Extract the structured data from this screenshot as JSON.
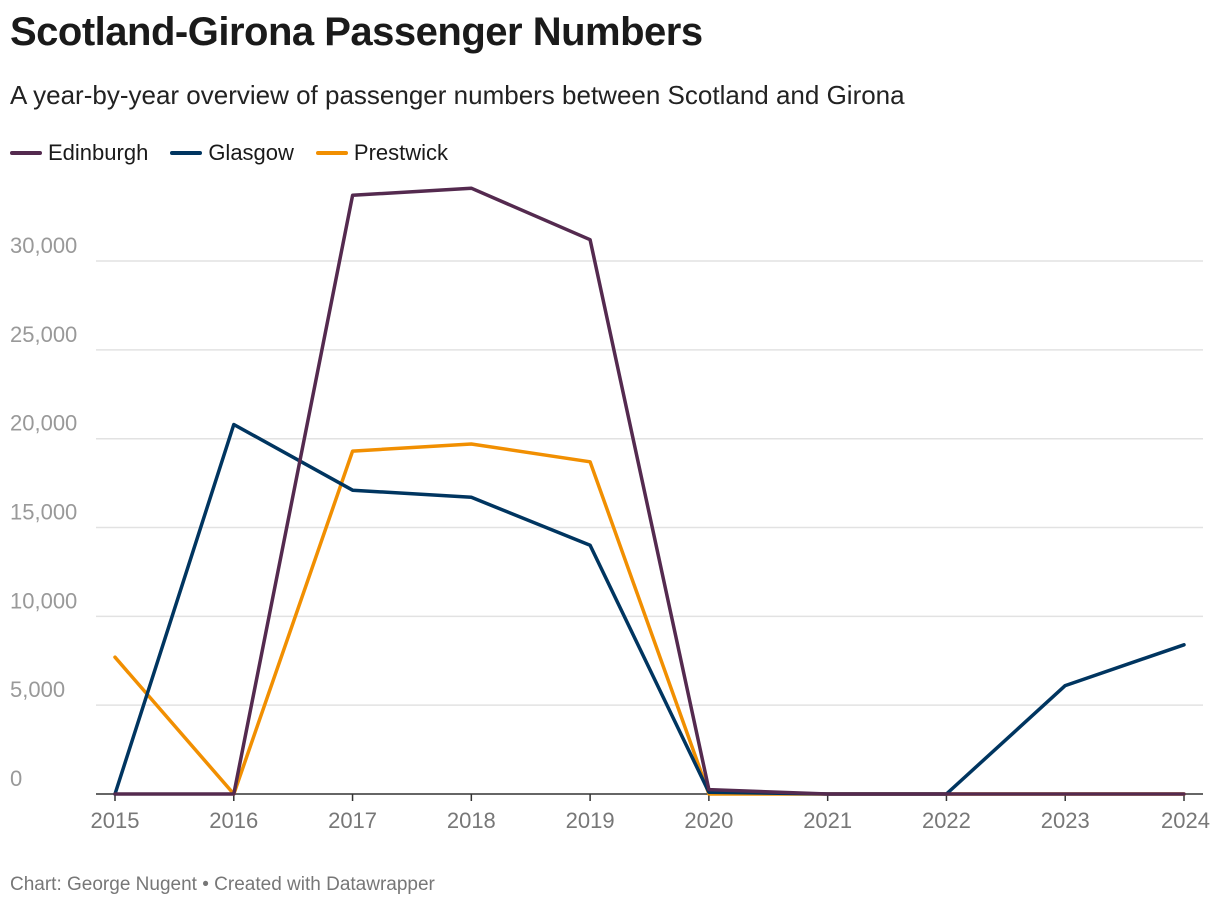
{
  "title": "Scotland-Girona Passenger Numbers",
  "subtitle": "A year-by-year overview of passenger numbers between Scotland and Girona",
  "footer": {
    "source": "Chart: George Nugent",
    "separator": "•",
    "credit": "Created with Datawrapper"
  },
  "chart_data": {
    "type": "line",
    "title": "Scotland-Girona Passenger Numbers",
    "subtitle": "A year-by-year overview of passenger numbers between Scotland and Girona",
    "xlabel": "",
    "ylabel": "",
    "x": [
      "2015",
      "2016",
      "2017",
      "2018",
      "2019",
      "2020",
      "2021",
      "2022",
      "2023",
      "2024"
    ],
    "ylim": [
      0,
      34000
    ],
    "yticks": [
      0,
      5000,
      10000,
      15000,
      20000,
      25000,
      30000
    ],
    "ytick_labels": [
      "0",
      "5,000",
      "10,000",
      "15,000",
      "20,000",
      "25,000",
      "30,000"
    ],
    "grid": true,
    "legend_position": "top-left",
    "series": [
      {
        "name": "Edinburgh",
        "color": "#542a4f",
        "values": [
          0,
          0,
          33700,
          34100,
          31200,
          250,
          0,
          0,
          0,
          0
        ]
      },
      {
        "name": "Glasgow",
        "color": "#003560",
        "values": [
          0,
          20800,
          17100,
          16700,
          14000,
          100,
          0,
          0,
          6100,
          8400
        ]
      },
      {
        "name": "Prestwick",
        "color": "#f18f01",
        "values": [
          7700,
          0,
          19300,
          19700,
          18700,
          0,
          0,
          0,
          0,
          0
        ]
      }
    ]
  }
}
